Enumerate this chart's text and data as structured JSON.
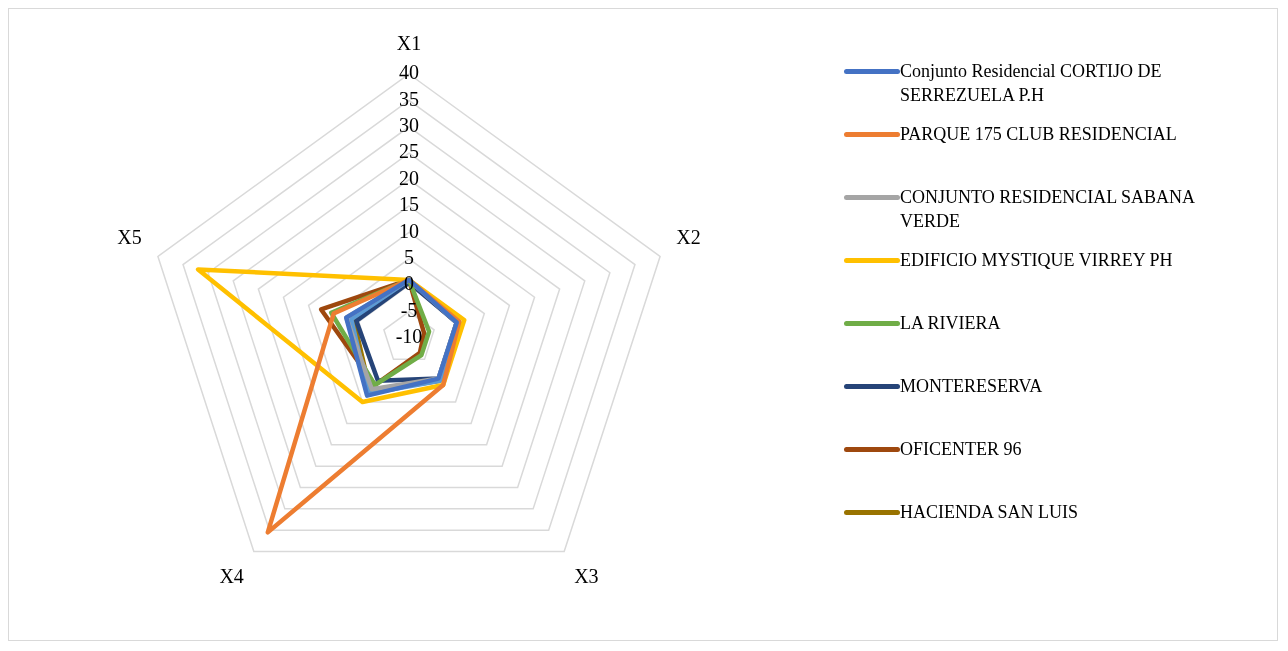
{
  "chart_data": {
    "type": "radar",
    "categories": [
      "X1",
      "X2",
      "X3",
      "X4",
      "X5"
    ],
    "ylim": [
      -10,
      40
    ],
    "yticks": [
      -10,
      -5,
      0,
      5,
      10,
      15,
      20,
      25,
      30,
      35,
      40
    ],
    "grid": true,
    "legend": "right",
    "marker": "none",
    "series": [
      {
        "name": "Conjunto Residencial CORTIJO DE SERREZUELA P.H",
        "color": "#4472c4",
        "values": [
          1,
          -0.5,
          -0.5,
          3.5,
          2.5
        ]
      },
      {
        "name": "PARQUE 175 CLUB RESIDENCIAL",
        "color": "#ed7d31",
        "values": [
          1,
          0,
          1,
          35.5,
          5
        ]
      },
      {
        "name": "CONJUNTO RESIDENCIAL SABANA VERDE",
        "color": "#a5a5a5",
        "values": [
          1,
          -0.5,
          -0.5,
          2,
          2.5
        ]
      },
      {
        "name": "EDIFICIO MYSTIQUE VIRREY PH",
        "color": "#ffc000",
        "values": [
          1,
          1,
          1,
          5,
          32
        ]
      },
      {
        "color": "#5b9bd5",
        "values": [
          1,
          0,
          0,
          3,
          1.5
        ]
      },
      {
        "name": "LA RIVIERA",
        "color": "#70ad47",
        "values": [
          1,
          -6,
          -6,
          1,
          5.5
        ]
      },
      {
        "name": "MONTERESERVA",
        "color": "#264478",
        "values": [
          0.5,
          -0.5,
          -0.5,
          0,
          0.5
        ]
      },
      {
        "name": "OFICENTER 96",
        "color": "#9e480e",
        "values": [
          1,
          -7,
          -6.5,
          1,
          7.5
        ]
      },
      {
        "name": "HACIENDA SAN LUIS",
        "color": "#997300",
        "values": [
          1,
          -0.5,
          0,
          2.5,
          1
        ]
      }
    ]
  }
}
